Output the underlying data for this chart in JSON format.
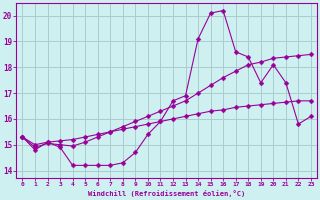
{
  "xlabel": "Windchill (Refroidissement éolien,°C)",
  "bg_color": "#cff0f0",
  "line_color": "#990099",
  "grid_color": "#aacccc",
  "xlim": [
    -0.5,
    23.5
  ],
  "ylim": [
    13.7,
    20.5
  ],
  "yticks": [
    14,
    15,
    16,
    17,
    18,
    19,
    20
  ],
  "xticks": [
    0,
    1,
    2,
    3,
    4,
    5,
    6,
    7,
    8,
    9,
    10,
    11,
    12,
    13,
    14,
    15,
    16,
    17,
    18,
    19,
    20,
    21,
    22,
    23
  ],
  "line1_x": [
    0,
    1,
    2,
    3,
    4,
    5,
    6,
    7,
    8,
    9,
    10,
    11,
    12,
    13,
    14,
    15,
    16,
    17,
    18,
    19,
    20,
    21,
    22,
    23
  ],
  "line1_y": [
    15.3,
    14.8,
    15.1,
    14.9,
    14.2,
    14.2,
    14.2,
    14.2,
    14.3,
    14.7,
    15.4,
    15.9,
    16.7,
    16.9,
    19.1,
    20.1,
    20.2,
    18.6,
    18.4,
    17.4,
    18.1,
    17.4,
    15.8,
    16.1
  ],
  "line2_x": [
    0,
    1,
    2,
    3,
    4,
    5,
    6,
    7,
    8,
    9,
    10,
    11,
    12,
    13,
    14,
    15,
    16,
    17,
    18,
    19,
    20,
    21,
    22,
    23
  ],
  "line2_y": [
    15.3,
    14.9,
    15.05,
    15.0,
    14.95,
    15.1,
    15.3,
    15.5,
    15.7,
    15.9,
    16.1,
    16.3,
    16.5,
    16.7,
    17.0,
    17.3,
    17.6,
    17.85,
    18.1,
    18.2,
    18.35,
    18.4,
    18.45,
    18.5
  ],
  "line3_x": [
    0,
    1,
    2,
    3,
    4,
    5,
    6,
    7,
    8,
    9,
    10,
    11,
    12,
    13,
    14,
    15,
    16,
    17,
    18,
    19,
    20,
    21,
    22,
    23
  ],
  "line3_y": [
    15.3,
    15.0,
    15.1,
    15.15,
    15.2,
    15.3,
    15.4,
    15.5,
    15.6,
    15.7,
    15.8,
    15.9,
    16.0,
    16.1,
    16.2,
    16.3,
    16.35,
    16.45,
    16.5,
    16.55,
    16.6,
    16.65,
    16.7,
    16.7
  ]
}
